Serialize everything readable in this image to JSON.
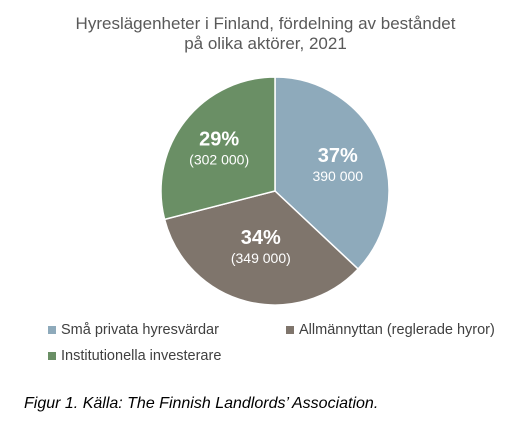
{
  "chart_data": {
    "type": "pie",
    "title_lines": [
      "Hyreslägenheter i Finland, fördelning av beståndet",
      "på olika aktörer, 2021"
    ],
    "slices": [
      {
        "name": "Små privata hyresvärdar",
        "value": 37,
        "percent_label": "37%",
        "count_label": "390 000",
        "color": "#8eaabb"
      },
      {
        "name": "Allmännyttan (reglerade hyror)",
        "value": 34,
        "percent_label": "34%",
        "count_label": "(349 000)",
        "color": "#7f756c"
      },
      {
        "name": "Institutionella investerare",
        "value": 29,
        "percent_label": "29%",
        "count_label": "(302 000)",
        "color": "#6a8f65"
      }
    ],
    "legend_placement": "bottom"
  },
  "caption": "Figur 1. Källa: The Finnish Landlords’ Association."
}
